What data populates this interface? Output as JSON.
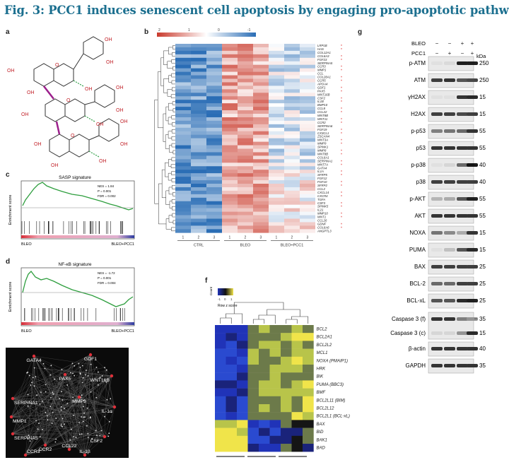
{
  "title": "Fig. 3: PCC1 induces senescent cell apoptosis by engaging pro-apoptotic pathways.",
  "panels": {
    "a": "a",
    "b": "b",
    "c": "c",
    "d": "d",
    "e": "e",
    "f": "f",
    "g": "g"
  },
  "molecule": {
    "oh": "OH",
    "o": "O"
  },
  "panel_c": {
    "title": "SASP signature",
    "nes": "NES = 1.84",
    "p": "P = 0.001",
    "fdr": "FDR = 0.002",
    "ylabel": "Enrichment score",
    "left": "BLEO",
    "right": "BLEO+PCC1"
  },
  "panel_d": {
    "title": "NF-κB signature",
    "nes": "NES = -1.72",
    "p": "P = 0.001",
    "fdr": "FDR = 0.004",
    "ylabel": "Enrichment score",
    "left": "BLEO",
    "right": "BLEO+PCC1"
  },
  "panel_b": {
    "scale_ticks": [
      "2",
      "1",
      "0",
      "-1"
    ],
    "genes": [
      "LRP1B",
      "HAS",
      "COL12A1",
      "COL6A3",
      "FGF23",
      "SERPINA5",
      "CCR3",
      "MMP1",
      "CCL",
      "COL28A1",
      "CCR5",
      "APOA4",
      "GDF1",
      "PAX5",
      "WNT16B",
      "CSF2",
      "IL1B",
      "BMP10",
      "CCL8",
      "CCL22",
      "WNT8B",
      "WNT11",
      "CCR2",
      "SERPINA6",
      "FGF19",
      "CX3CL1",
      "ZSCAN4",
      "WNT3A",
      "MMP9",
      "SPINK1",
      "MMP8",
      "WNT8B",
      "COL6A1",
      "SERPINA1",
      "WNT7A",
      "GATA4",
      "IL1A",
      "SFRP5",
      "FGF12",
      "FGF10",
      "SFRP2",
      "CCL2",
      "CXCL14",
      "CXCR4",
      "TGFA",
      "CSF3",
      "SPINK5",
      "IL21",
      "MMP10",
      "WNT1",
      "CCL26",
      "GDNF",
      "COL6A6",
      "ANGPTL3"
    ],
    "lanes": [
      "1",
      "2",
      "3",
      "1",
      "2",
      "3",
      "1",
      "2",
      "3"
    ],
    "groups": [
      "CTRL",
      "BLEO",
      "BLEO+PCC1"
    ],
    "star": "*"
  },
  "panel_e": {
    "nodes": [
      "GATA4",
      "GDF1",
      "PAX5",
      "WNT16B",
      "SERPINA1",
      "MMP9",
      "IL-1α",
      "MMP1",
      "SERPINA5",
      "CSF2",
      "CCR2",
      "CCL22",
      "CCR3",
      "IL-1β"
    ]
  },
  "panel_f": {
    "legend_title": "Count",
    "legend_ticks": [
      "-1",
      "0",
      "1"
    ],
    "legend_label": "Row z score",
    "genes": [
      "BCL2",
      "BCL2A1",
      "BCL2L2",
      "MCL1",
      "NOXA (PMAIP1)",
      "HRK",
      "BIK",
      "PUMA (BBC3)",
      "BMF",
      "BCL2L11 (BIM)",
      "BCL2L12",
      "BCL2L1 (BCL-xL)",
      "BAX",
      "BID",
      "BAK1",
      "BAD"
    ]
  },
  "panel_g": {
    "row_labels": [
      "BLEO",
      "PCC1"
    ],
    "bleo": [
      "−",
      "−",
      "+",
      "+"
    ],
    "pcc1": [
      "−",
      "+",
      "−",
      "+"
    ],
    "kda": "kDa",
    "blots": [
      {
        "name": "p-ATM",
        "kda": "250"
      },
      {
        "name": "ATM",
        "kda": "250"
      },
      {
        "name": "γH2AX",
        "kda": "15"
      },
      {
        "name": "H2AX",
        "kda": "15"
      },
      {
        "name": "p-p53",
        "kda": "55"
      },
      {
        "name": "p53",
        "kda": "55"
      },
      {
        "name": "p-p38",
        "kda": "40"
      },
      {
        "name": "p38",
        "kda": "40"
      },
      {
        "name": "p-AKT",
        "kda": "55"
      },
      {
        "name": "AKT",
        "kda": "55"
      },
      {
        "name": "NOXA",
        "kda": "15"
      },
      {
        "name": "PUMA",
        "kda": "15"
      },
      {
        "name": "BAX",
        "kda": "25"
      },
      {
        "name": "BCL-2",
        "kda": "25"
      },
      {
        "name": "BCL-xL",
        "kda": "25"
      },
      {
        "name": "Caspase 3 (f)",
        "kda": "35"
      },
      {
        "name": "Caspase 3 (c)",
        "kda": "15"
      },
      {
        "name": "β-actin",
        "kda": "40"
      },
      {
        "name": "GAPDH",
        "kda": "35"
      }
    ]
  },
  "colors": {
    "title": "#1b6f8f",
    "heat_high": "#c93a2c",
    "heat_low": "#2a6db5",
    "gsea_line": "#2e9e3e",
    "yellow": "#f0e44a",
    "blue": "#2033b8",
    "network_bg": "#0b0b0b"
  }
}
